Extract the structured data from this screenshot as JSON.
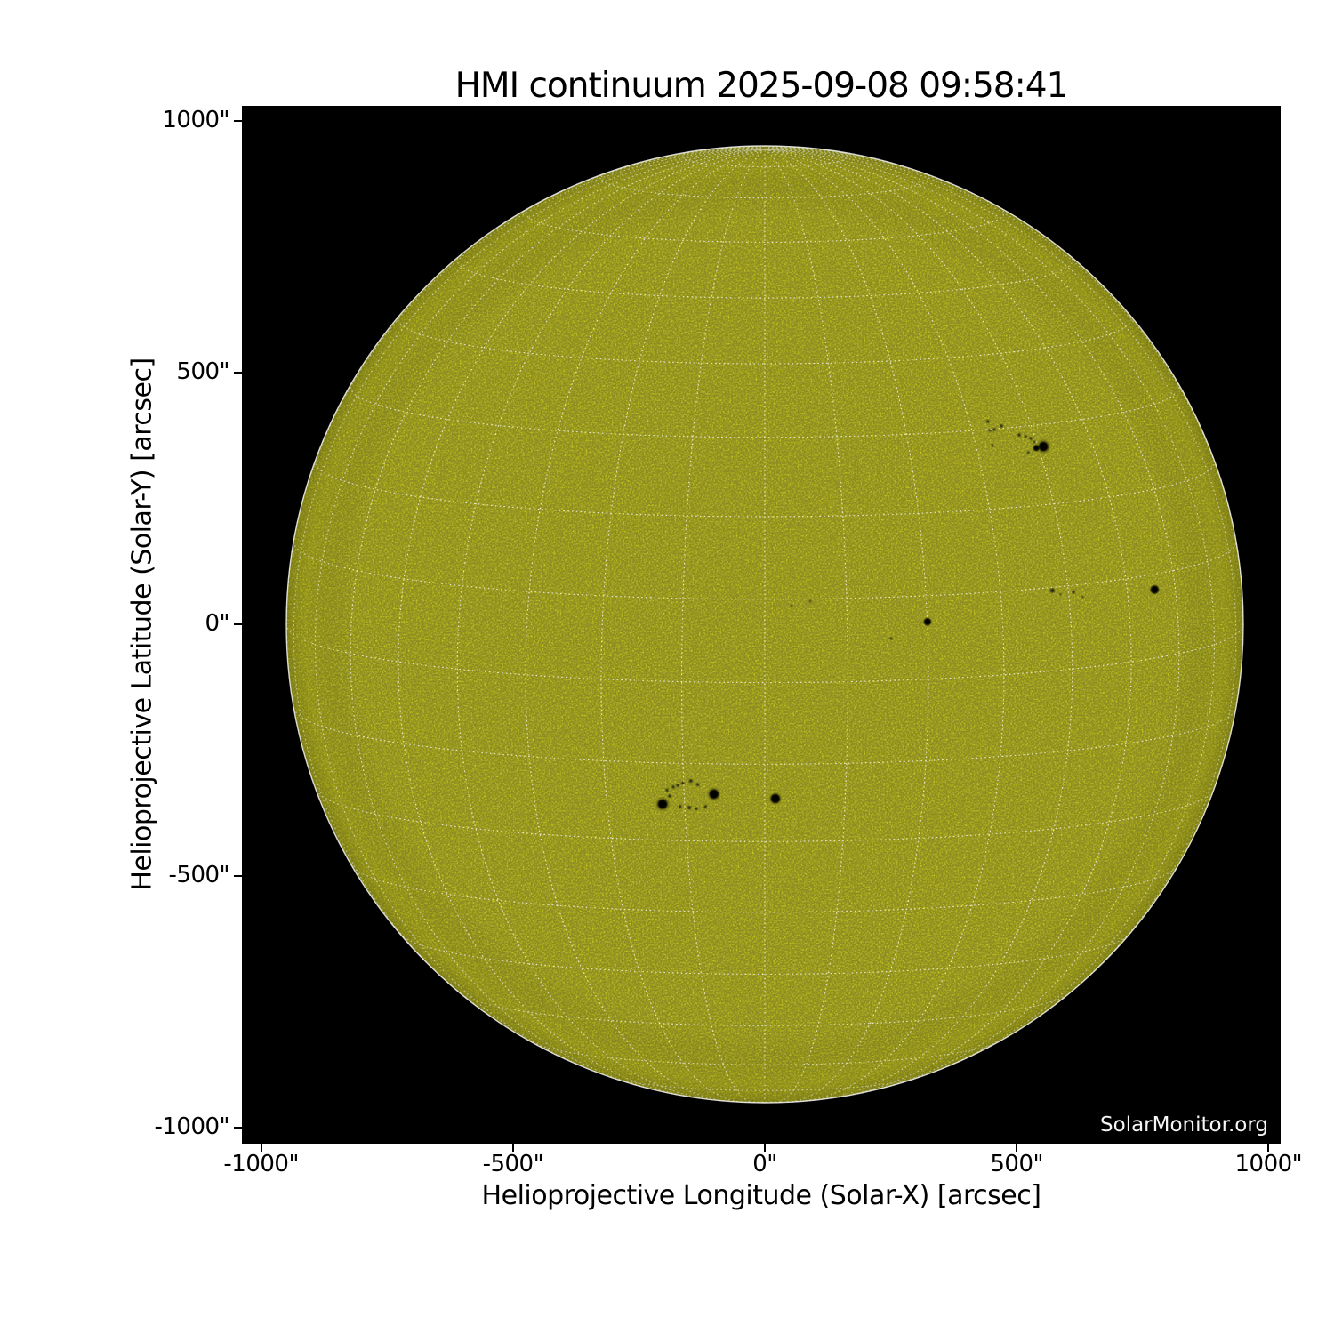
{
  "figure": {
    "title": "HMI continuum 2025-09-08 09:58:41",
    "watermark": "SolarMonitor.org",
    "background_color": "#ffffff",
    "plot_background_color": "#000000"
  },
  "axes": {
    "x_label": "Helioprojective Longitude (Solar-X) [arcsec]",
    "y_label": "Helioprojective Latitude (Solar-Y) [arcsec]",
    "x_ticks": [
      {
        "value": -1000,
        "label": "-1000\""
      },
      {
        "value": -500,
        "label": "-500\""
      },
      {
        "value": 0,
        "label": "0\""
      },
      {
        "value": 500,
        "label": "500\""
      },
      {
        "value": 1000,
        "label": "1000\""
      }
    ],
    "y_ticks": [
      {
        "value": 1000,
        "label": "1000\""
      },
      {
        "value": 500,
        "label": "500\""
      },
      {
        "value": 0,
        "label": "0\""
      },
      {
        "value": -500,
        "label": "-500\""
      },
      {
        "value": -1000,
        "label": "-1000\""
      }
    ]
  },
  "chart_data": {
    "type": "heatmap",
    "title": "HMI continuum 2025-09-08 09:58:41",
    "instrument": "HMI continuum",
    "observation_time": "2025-09-08 09:58:41",
    "xlabel": "Helioprojective Longitude (Solar-X) [arcsec]",
    "ylabel": "Helioprojective Latitude (Solar-Y) [arcsec]",
    "xlim": [
      -1038,
      1025
    ],
    "ylim": [
      -1032,
      1030
    ],
    "grid": true,
    "legend": false,
    "sun": {
      "radius_arcsec": 950,
      "center_arcsec": [
        0,
        0
      ],
      "b0_deg": 7,
      "grid_step_deg": 10,
      "disk_color": "#c9c91e",
      "grid_color": "#ffffff",
      "limb_color": "#ffffff"
    },
    "sunspot_groups": [
      {
        "name": "group-northwest",
        "spots": [
          {
            "x": 553,
            "y": 353,
            "umbra_r": 9,
            "penumbra_r": 19
          },
          {
            "x": 539,
            "y": 350,
            "umbra_r": 5.5,
            "penumbra_r": 10
          }
        ],
        "pores": [
          [
            443,
            403,
            3
          ],
          [
            456,
            387,
            3
          ],
          [
            470,
            394,
            3
          ],
          [
            447,
            385,
            2.5
          ],
          [
            452,
            355,
            2.5
          ],
          [
            505,
            376,
            3
          ],
          [
            518,
            373,
            2.5
          ],
          [
            528,
            369,
            3
          ],
          [
            523,
            341,
            2.5
          ],
          [
            535,
            362,
            2.5
          ]
        ]
      },
      {
        "name": "group-center-disk",
        "spots": [
          {
            "x": 323,
            "y": 5,
            "umbra_r": 7,
            "penumbra_r": 11
          }
        ],
        "pores": [
          [
            251,
            -28,
            2.5
          ],
          [
            53,
            37,
            2
          ],
          [
            90,
            46,
            2
          ]
        ]
      },
      {
        "name": "group-east-pores",
        "spots": [],
        "pores": [
          [
            571,
            67,
            4.5
          ],
          [
            587,
            60,
            2
          ],
          [
            613,
            64,
            3
          ],
          [
            631,
            55,
            2
          ]
        ]
      },
      {
        "name": "spot-east-limb",
        "spots": [
          {
            "x": 774,
            "y": 69,
            "umbra_r": 8,
            "penumbra_r": 12.5
          }
        ],
        "pores": []
      },
      {
        "name": "group-south-center",
        "spots": [
          {
            "x": -203,
            "y": -357,
            "umbra_r": 9,
            "penumbra_r": 19
          },
          {
            "x": -101,
            "y": -337,
            "umbra_r": 9,
            "penumbra_r": 17.5
          },
          {
            "x": 21,
            "y": -346,
            "umbra_r": 9,
            "penumbra_r": 16
          }
        ],
        "pores": [
          [
            -194,
            -329,
            3
          ],
          [
            -182,
            -323,
            3
          ],
          [
            -173,
            -320,
            3
          ],
          [
            -163,
            -315,
            3
          ],
          [
            -147,
            -311,
            3.5
          ],
          [
            -133,
            -318,
            3
          ],
          [
            -189,
            -341,
            3
          ],
          [
            -168,
            -362,
            3
          ],
          [
            -150,
            -364,
            3.5
          ],
          [
            -136,
            -366,
            3
          ],
          [
            -118,
            -362,
            3
          ]
        ]
      }
    ]
  }
}
